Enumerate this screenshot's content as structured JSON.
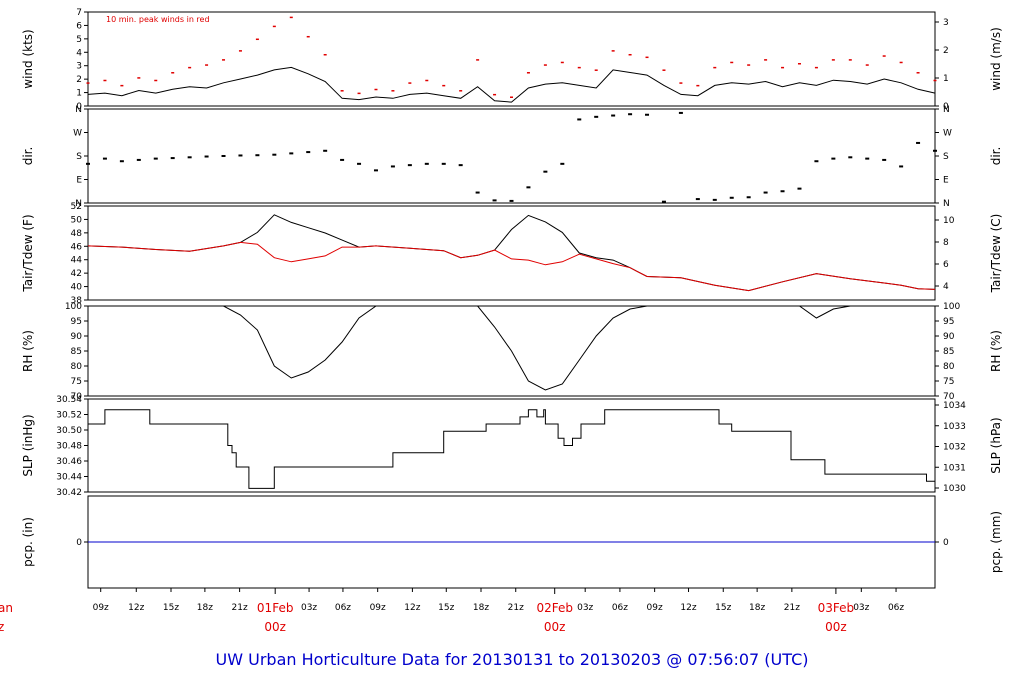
{
  "footer": "UW Urban Horticulture Data for 20130131  to  20130203 @ 07:56:07  (UTC)",
  "colors": {
    "series": "#000000",
    "peak": "#e00000",
    "dew": "#e00000",
    "precip": "#0000cc",
    "date_labels": "#e00000",
    "footer": "#0000cc"
  },
  "chart_data": {
    "type": "line",
    "x_tick_labels": [
      "09z",
      "12z",
      "15z",
      "18z",
      "21z",
      "03z",
      "06z",
      "09z",
      "12z",
      "15z",
      "18z",
      "21z",
      "03z",
      "06z",
      "09z",
      "12z",
      "15z",
      "18z",
      "21z",
      "03z",
      "06z"
    ],
    "date_labels": [
      {
        "day": "01Feb",
        "hour": "00z"
      },
      {
        "day": "02Feb",
        "hour": "00z"
      },
      {
        "day": "03Feb",
        "hour": "00z"
      }
    ],
    "left_edge_labels": [
      "an",
      "z"
    ],
    "panels": [
      {
        "id": "wind",
        "ylabel_left": "wind (kts)",
        "ylabel_right": "wind (m/s)",
        "left_ticks": [
          "0",
          "1",
          "2",
          "3",
          "4",
          "5",
          "6",
          "7"
        ],
        "left_range": [
          0,
          7.3
        ],
        "right_ticks": [
          "0",
          "1",
          "2",
          "3"
        ],
        "annotation": "10 min. peak winds in red",
        "series": [
          {
            "name": "wind",
            "x": [
              0,
              2,
              4,
              6,
              8,
              10,
              12,
              14,
              16,
              18,
              20,
              22,
              24,
              26,
              28,
              30,
              32,
              34,
              36,
              38,
              40,
              42,
              44,
              46,
              48,
              50,
              52,
              54,
              56,
              58,
              60,
              62,
              64,
              66,
              68,
              70,
              72,
              74,
              76,
              78,
              80,
              82,
              84,
              86,
              88,
              90,
              92,
              94,
              96,
              98,
              100
            ],
            "y": [
              0.9,
              1.0,
              0.8,
              1.2,
              1.0,
              1.3,
              1.5,
              1.4,
              1.8,
              2.1,
              2.4,
              2.8,
              3.0,
              2.5,
              1.9,
              0.6,
              0.5,
              0.7,
              0.6,
              0.9,
              1.0,
              0.8,
              0.6,
              1.5,
              0.4,
              0.3,
              1.4,
              1.7,
              1.8,
              1.6,
              1.4,
              2.8,
              2.6,
              2.4,
              1.6,
              0.9,
              0.8,
              1.6,
              1.8,
              1.7,
              1.9,
              1.5,
              1.8,
              1.6,
              2.0,
              1.9,
              1.7,
              2.1,
              1.8,
              1.3,
              1.0
            ]
          },
          {
            "name": "10 min. peak",
            "x": [
              0,
              2,
              4,
              6,
              8,
              10,
              12,
              14,
              16,
              18,
              20,
              22,
              24,
              26,
              28,
              30,
              32,
              34,
              36,
              38,
              40,
              42,
              44,
              46,
              48,
              50,
              52,
              54,
              56,
              58,
              60,
              62,
              64,
              66,
              68,
              70,
              72,
              74,
              76,
              78,
              80,
              82,
              84,
              86,
              88,
              90,
              92,
              94,
              96,
              98,
              100
            ],
            "y": [
              1.8,
              2.0,
              1.6,
              2.2,
              2.0,
              2.6,
              3.0,
              3.2,
              3.6,
              4.3,
              5.2,
              6.2,
              6.9,
              5.4,
              4.0,
              1.2,
              1.0,
              1.3,
              1.2,
              1.8,
              2.0,
              1.6,
              1.2,
              3.6,
              0.9,
              0.7,
              2.6,
              3.2,
              3.4,
              3.0,
              2.8,
              4.3,
              4.0,
              3.8,
              2.8,
              1.8,
              1.6,
              3.0,
              3.4,
              3.2,
              3.6,
              3.0,
              3.3,
              3.0,
              3.6,
              3.6,
              3.2,
              3.9,
              3.4,
              2.6,
              2.0
            ]
          }
        ]
      },
      {
        "id": "dir",
        "ylabel_left": "dir.",
        "ylabel_right": "dir.",
        "left_ticks": [
          "N",
          "E",
          "S",
          "W",
          "N"
        ],
        "left_range": [
          0,
          360
        ],
        "right_ticks": [
          "N",
          "E",
          "S",
          "W",
          "N"
        ],
        "series": [
          {
            "name": "direction",
            "x": [
              0,
              2,
              4,
              6,
              8,
              10,
              12,
              14,
              16,
              18,
              20,
              22,
              24,
              26,
              28,
              30,
              32,
              34,
              36,
              38,
              40,
              42,
              44,
              46,
              48,
              50,
              52,
              54,
              56,
              58,
              60,
              62,
              64,
              66,
              68,
              70,
              72,
              74,
              76,
              78,
              80,
              82,
              84,
              86,
              88,
              90,
              92,
              94,
              96,
              98,
              100
            ],
            "y": [
              150,
              170,
              160,
              165,
              170,
              172,
              175,
              178,
              180,
              182,
              183,
              185,
              190,
              195,
              200,
              165,
              150,
              125,
              140,
              145,
              150,
              150,
              145,
              40,
              10,
              8,
              60,
              120,
              150,
              320,
              330,
              335,
              340,
              338,
              5,
              345,
              15,
              12,
              20,
              22,
              40,
              45,
              55,
              160,
              170,
              175,
              170,
              165,
              140,
              230,
              200
            ]
          }
        ]
      },
      {
        "id": "temp",
        "ylabel_left": "Tair/Tdew (F)",
        "ylabel_right": "Tair/Tdew (C)",
        "left_ticks": [
          "38",
          "40",
          "42",
          "44",
          "46",
          "48",
          "50",
          "52"
        ],
        "left_range": [
          37,
          53
        ],
        "right_ticks": [
          "4",
          "6",
          "8",
          "10"
        ],
        "series": [
          {
            "name": "Tair",
            "x": [
              0,
              4,
              8,
              12,
              16,
              18,
              20,
              22,
              24,
              26,
              28,
              30,
              32,
              34,
              38,
              42,
              44,
              46,
              48,
              50,
              52,
              54,
              56,
              58,
              60,
              62,
              64,
              66,
              70,
              74,
              78,
              82,
              86,
              90,
              94,
              96,
              98,
              100
            ],
            "y": [
              46.2,
              46.0,
              45.6,
              45.3,
              46.2,
              46.8,
              48.5,
              51.5,
              50.2,
              49.3,
              48.4,
              47.2,
              46.0,
              46.2,
              45.8,
              45.4,
              44.2,
              44.6,
              45.5,
              49.0,
              51.4,
              50.3,
              48.5,
              45.0,
              44.2,
              43.8,
              42.5,
              41.0,
              40.8,
              39.5,
              38.6,
              40.1,
              41.5,
              40.6,
              39.9,
              39.5,
              38.9,
              38.8
            ]
          },
          {
            "name": "Tdew",
            "x": [
              0,
              4,
              8,
              12,
              16,
              18,
              20,
              22,
              24,
              26,
              28,
              30,
              32,
              34,
              38,
              42,
              44,
              46,
              48,
              50,
              52,
              54,
              56,
              58,
              60,
              62,
              64,
              66,
              70,
              74,
              78,
              82,
              86,
              90,
              94,
              96,
              98,
              100
            ],
            "y": [
              46.2,
              46.0,
              45.6,
              45.3,
              46.2,
              46.8,
              46.5,
              44.2,
              43.5,
              44.0,
              44.5,
              46.0,
              46.0,
              46.2,
              45.8,
              45.4,
              44.2,
              44.6,
              45.5,
              44.0,
              43.8,
              43.0,
              43.5,
              44.8,
              44.0,
              43.2,
              42.5,
              41.0,
              40.8,
              39.5,
              38.6,
              40.1,
              41.5,
              40.6,
              39.9,
              39.5,
              38.9,
              38.8
            ]
          }
        ]
      },
      {
        "id": "rh",
        "ylabel_left": "RH (%)",
        "ylabel_right": "RH (%)",
        "left_ticks": [
          "70",
          "75",
          "80",
          "85",
          "90",
          "95",
          "100"
        ],
        "left_range": [
          70,
          100
        ],
        "right_ticks": [
          "70",
          "75",
          "80",
          "85",
          "90",
          "95",
          "100"
        ],
        "series": [
          {
            "name": "RH",
            "x": [
              0,
              12,
              16,
              18,
              20,
              22,
              24,
              26,
              28,
              30,
              32,
              34,
              46,
              48,
              50,
              52,
              54,
              56,
              58,
              60,
              62,
              64,
              66,
              84,
              86,
              88,
              90,
              100
            ],
            "y": [
              100,
              100,
              100,
              97,
              92,
              80,
              76,
              78,
              82,
              88,
              96,
              100,
              100,
              93,
              85,
              75,
              72,
              74,
              82,
              90,
              96,
              99,
              100,
              100,
              96,
              99,
              100,
              100
            ]
          }
        ]
      },
      {
        "id": "slp",
        "ylabel_left": "SLP (inHg)",
        "ylabel_right": "SLP (hPa)",
        "left_ticks": [
          "30.42",
          "30.44",
          "30.46",
          "30.48",
          "30.50",
          "30.52",
          "30.54"
        ],
        "left_range": [
          30.415,
          30.545
        ],
        "right_ticks": [
          "1030",
          "1031",
          "1032",
          "1033",
          "1034"
        ],
        "series": [
          {
            "name": "SLP",
            "x": [
              0,
              2,
              7,
              7.3,
              16,
              16.5,
              17,
              17.5,
              19,
              22,
              26,
              33,
              36,
              42,
              47,
              51,
              52,
              53,
              53.8,
              54,
              54.6,
              55.5,
              56.2,
              57.2,
              58.2,
              61,
              72,
              74.5,
              76,
              83,
              87,
              99,
              100
            ],
            "y": [
              30.51,
              30.53,
              30.53,
              30.51,
              30.51,
              30.48,
              30.47,
              30.45,
              30.42,
              30.45,
              30.45,
              30.45,
              30.47,
              30.5,
              30.51,
              30.52,
              30.53,
              30.52,
              30.53,
              30.51,
              30.51,
              30.49,
              30.48,
              30.49,
              30.51,
              30.53,
              30.53,
              30.51,
              30.5,
              30.46,
              30.44,
              30.43,
              30.45
            ]
          }
        ]
      },
      {
        "id": "pcp",
        "ylabel_left": "pcp. (in)",
        "ylabel_right": "pcp. (mm)",
        "left_ticks": [
          "0"
        ],
        "left_range": [
          -1,
          1
        ],
        "right_ticks": [
          "0"
        ],
        "series": [
          {
            "name": "precip",
            "x": [
              0,
              100
            ],
            "y": [
              0,
              0
            ]
          }
        ]
      }
    ]
  }
}
